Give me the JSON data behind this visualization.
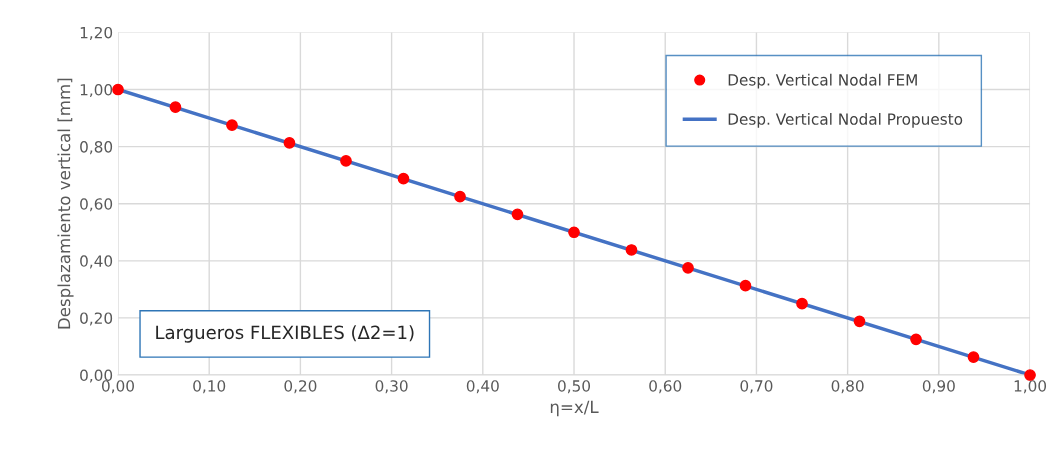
{
  "chart_data": {
    "type": "scatter",
    "xlabel": "η=x/L",
    "ylabel": "Desplazamiento vertical [mm]",
    "annotations": [
      "Largueros FLEXIBLES (Δ2=1)"
    ],
    "series": [
      {
        "name": "Desp. Vertical Nodal FEM",
        "color": "#ff0000",
        "marker": "circle",
        "x": [
          0,
          0.063,
          0.125,
          0.188,
          0.25,
          0.313,
          0.375,
          0.438,
          0.5,
          0.563,
          0.625,
          0.688,
          0.75,
          0.813,
          0.875,
          0.938,
          1
        ],
        "values": [
          1,
          0.938,
          0.875,
          0.813,
          0.75,
          0.688,
          0.625,
          0.563,
          0.5,
          0.438,
          0.375,
          0.313,
          0.25,
          0.188,
          0.125,
          0.063,
          0
        ]
      },
      {
        "name": "Desp. Vertical Nodal Propuesto",
        "type": "line",
        "color": "#4472c4",
        "line_style": "solid",
        "x": [
          0,
          1
        ],
        "values": [
          1,
          0
        ]
      }
    ],
    "xlim": [
      0,
      1
    ],
    "ylim": [
      0,
      1.2
    ],
    "xticks": [
      {
        "value": 0,
        "label": "0,00"
      },
      {
        "value": 0.1,
        "label": "0,10"
      },
      {
        "value": 0.2,
        "label": "0,20"
      },
      {
        "value": 0.3,
        "label": "0,30"
      },
      {
        "value": 0.4,
        "label": "0,40"
      },
      {
        "value": 0.5,
        "label": "0,50"
      },
      {
        "value": 0.6,
        "label": "0,60"
      },
      {
        "value": 0.7,
        "label": "0,70"
      },
      {
        "value": 0.8,
        "label": "0,80"
      },
      {
        "value": 0.9,
        "label": "0,90"
      },
      {
        "value": 1,
        "label": "1,00"
      }
    ],
    "yticks": [
      {
        "value": 0,
        "label": "0,00"
      },
      {
        "value": 0.2,
        "label": "0,20"
      },
      {
        "value": 0.4,
        "label": "0,40"
      },
      {
        "value": 0.6,
        "label": "0,60"
      },
      {
        "value": 0.8,
        "label": "0,80"
      },
      {
        "value": 1,
        "label": "1,00"
      },
      {
        "value": 1.2,
        "label": "1,20"
      }
    ],
    "grid": true,
    "legend": "top right"
  }
}
